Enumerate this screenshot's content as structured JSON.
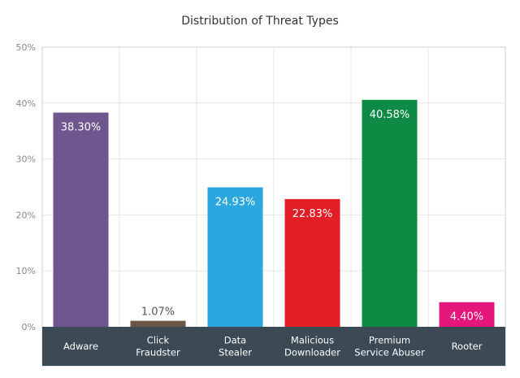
{
  "chart_data": {
    "type": "bar",
    "title": "Distribution of Threat Types",
    "xlabel": "",
    "ylabel": "",
    "ylim": [
      0,
      50
    ],
    "yticks": [
      0,
      10,
      20,
      30,
      40,
      50
    ],
    "ytick_labels": [
      "0%",
      "10%",
      "20%",
      "30%",
      "40%",
      "50%"
    ],
    "categories": [
      [
        "Adware"
      ],
      [
        "Click",
        "Fraudster"
      ],
      [
        "Data",
        "Stealer"
      ],
      [
        "Malicious",
        "Downloader"
      ],
      [
        "Premium",
        "Service Abuser"
      ],
      [
        "Rooter"
      ]
    ],
    "values": [
      38.3,
      1.07,
      24.93,
      22.83,
      40.58,
      4.4
    ],
    "value_labels": [
      "38.30%",
      "1.07%",
      "24.93%",
      "22.83%",
      "40.58%",
      "4.40%"
    ],
    "colors": [
      "#6f568e",
      "#6b5547",
      "#2aa7de",
      "#e21e26",
      "#0d8b45",
      "#e4157b"
    ],
    "grid": true,
    "legend": "none"
  }
}
